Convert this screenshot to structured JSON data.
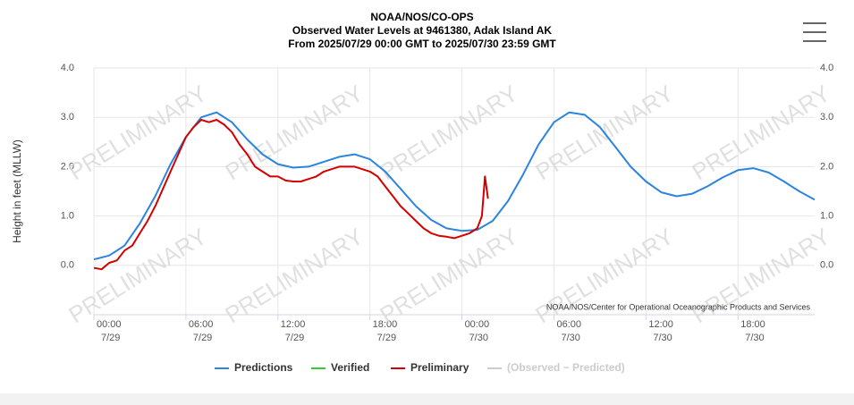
{
  "chart_data": {
    "type": "line",
    "title": [
      "NOAA/NOS/CO-OPS",
      "Observed Water Levels at 9461380, Adak Island AK",
      "From 2025/07/29 00:00 GMT to 2025/07/30 23:59 GMT"
    ],
    "y_label": "Height in feet (MLLW)",
    "watermark": "PRELIMINARY",
    "credits": "NOAA/NOS/Center for Operational Oceanographic Products and Services",
    "xlim": [
      0,
      47
    ],
    "xticks": [
      {
        "value": 0,
        "label": "00:00",
        "date": "7/29"
      },
      {
        "value": 6,
        "label": "06:00",
        "date": "7/29"
      },
      {
        "value": 12,
        "label": "12:00",
        "date": "7/29"
      },
      {
        "value": 18,
        "label": "18:00",
        "date": "7/29"
      },
      {
        "value": 24,
        "label": "00:00",
        "date": "7/30"
      },
      {
        "value": 30,
        "label": "06:00",
        "date": "7/30"
      },
      {
        "value": 36,
        "label": "12:00",
        "date": "7/30"
      },
      {
        "value": 42,
        "label": "18:00",
        "date": "7/30"
      }
    ],
    "ylim": [
      -1,
      4
    ],
    "yticks": [
      {
        "value": 0,
        "label": "0.0"
      },
      {
        "value": 1,
        "label": "1.0"
      },
      {
        "value": 2,
        "label": "2.0"
      },
      {
        "value": 3,
        "label": "3.0"
      },
      {
        "value": 4,
        "label": "4.0"
      }
    ],
    "y2lim": [
      -1,
      4
    ],
    "y2ticks": [
      {
        "value": 0,
        "label": "0.0"
      },
      {
        "value": 1,
        "label": "1.0"
      },
      {
        "value": 2,
        "label": "2.0"
      },
      {
        "value": 3,
        "label": "3.0"
      },
      {
        "value": 4,
        "label": "4.0"
      }
    ],
    "grid": true,
    "legend": "bottom",
    "series": [
      {
        "name": "Predictions",
        "color": "#2b84e0",
        "x": [
          0,
          1,
          2,
          3,
          4,
          5,
          6,
          7,
          8,
          9,
          10,
          11,
          12,
          13,
          14,
          15,
          16,
          17,
          18,
          19,
          20,
          21,
          22,
          23,
          24,
          25,
          26,
          27,
          28,
          29,
          30,
          31,
          32,
          33,
          34,
          35,
          36,
          37,
          38,
          39,
          40,
          41,
          42,
          43,
          44,
          45,
          46,
          47
        ],
        "values": [
          0.12,
          0.2,
          0.4,
          0.85,
          1.4,
          2.05,
          2.6,
          3.0,
          3.1,
          2.9,
          2.55,
          2.25,
          2.05,
          1.98,
          2.0,
          2.1,
          2.2,
          2.25,
          2.15,
          1.9,
          1.55,
          1.2,
          0.92,
          0.75,
          0.7,
          0.72,
          0.9,
          1.3,
          1.85,
          2.45,
          2.9,
          3.1,
          3.05,
          2.8,
          2.4,
          2.0,
          1.7,
          1.48,
          1.4,
          1.45,
          1.6,
          1.78,
          1.93,
          1.97,
          1.88,
          1.7,
          1.5,
          1.33
        ]
      },
      {
        "name": "Verified",
        "color": "#33cc33",
        "x": [],
        "values": []
      },
      {
        "name": "Preliminary",
        "color": "#d40000",
        "x": [
          0,
          0.5,
          1,
          1.5,
          2,
          2.5,
          3,
          3.5,
          4,
          4.5,
          5,
          5.5,
          6,
          6.5,
          7,
          7.5,
          8,
          8.5,
          9,
          9.5,
          10,
          10.5,
          11,
          11.5,
          12,
          12.5,
          13,
          13.5,
          14,
          14.5,
          15,
          15.5,
          16,
          16.5,
          17,
          17.5,
          18,
          18.5,
          19,
          19.5,
          20,
          20.5,
          21,
          21.5,
          22,
          22.5,
          23,
          23.5,
          24,
          24.5,
          25,
          25.3,
          25.5,
          25.7
        ],
        "values": [
          -0.05,
          -0.08,
          0.05,
          0.1,
          0.3,
          0.4,
          0.65,
          0.9,
          1.2,
          1.55,
          1.9,
          2.25,
          2.6,
          2.8,
          2.95,
          2.9,
          2.95,
          2.85,
          2.7,
          2.45,
          2.25,
          2.0,
          1.9,
          1.8,
          1.8,
          1.72,
          1.7,
          1.7,
          1.75,
          1.8,
          1.9,
          1.95,
          2.0,
          2.0,
          2.0,
          1.95,
          1.9,
          1.8,
          1.6,
          1.4,
          1.2,
          1.05,
          0.9,
          0.75,
          0.65,
          0.6,
          0.58,
          0.55,
          0.6,
          0.65,
          0.75,
          1.0,
          1.8,
          1.35
        ]
      },
      {
        "name": "(Observed − Predicted)",
        "color": "#cccccc",
        "x": [],
        "values": []
      }
    ]
  }
}
